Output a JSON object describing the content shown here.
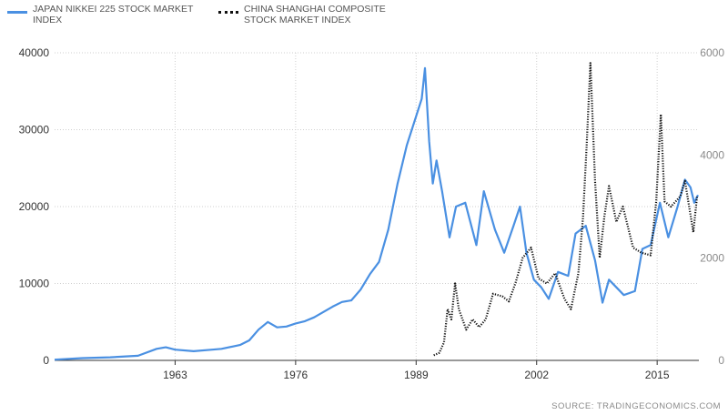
{
  "legend": [
    {
      "label": "JAPAN NIKKEI 225 STOCK MARKET INDEX",
      "color": "#4a90e2",
      "style": "solid"
    },
    {
      "label": "CHINA SHANGHAI COMPOSITE STOCK MARKET INDEX",
      "color": "#111111",
      "style": "dotted"
    }
  ],
  "source": "SOURCE: TRADINGECONOMICS.COM",
  "chart_data": {
    "type": "line",
    "title": "",
    "xlabel": "",
    "ylabel": "",
    "x_ticks": [
      1963,
      1976,
      1989,
      2002,
      2015
    ],
    "xlim": [
      1950,
      2019.5
    ],
    "y_left": {
      "ticks": [
        0,
        10000,
        20000,
        30000,
        40000
      ],
      "lim": [
        0,
        40000
      ]
    },
    "y_right": {
      "ticks": [
        0,
        2000,
        4000,
        6000
      ],
      "lim": [
        0,
        6000
      ]
    },
    "grid": true,
    "legend_position": "top-left",
    "series": [
      {
        "name": "JAPAN NIKKEI 225 STOCK MARKET INDEX",
        "axis": "left",
        "color": "#4a90e2",
        "style": "solid",
        "points": [
          [
            1950,
            100
          ],
          [
            1953,
            300
          ],
          [
            1956,
            400
          ],
          [
            1959,
            600
          ],
          [
            1961,
            1500
          ],
          [
            1962,
            1700
          ],
          [
            1963,
            1400
          ],
          [
            1965,
            1200
          ],
          [
            1967,
            1400
          ],
          [
            1968,
            1500
          ],
          [
            1970,
            2000
          ],
          [
            1971,
            2600
          ],
          [
            1972,
            4000
          ],
          [
            1973,
            5000
          ],
          [
            1974,
            4300
          ],
          [
            1975,
            4400
          ],
          [
            1976,
            4800
          ],
          [
            1977,
            5100
          ],
          [
            1978,
            5600
          ],
          [
            1979,
            6300
          ],
          [
            1980,
            7000
          ],
          [
            1981,
            7600
          ],
          [
            1982,
            7800
          ],
          [
            1983,
            9200
          ],
          [
            1984,
            11200
          ],
          [
            1985,
            12800
          ],
          [
            1986,
            17000
          ],
          [
            1987,
            23000
          ],
          [
            1988,
            28000
          ],
          [
            1989.6,
            34000
          ],
          [
            1989.95,
            38000
          ],
          [
            1990.4,
            28500
          ],
          [
            1990.8,
            23000
          ],
          [
            1991.2,
            26000
          ],
          [
            1991.8,
            22000
          ],
          [
            1992.6,
            16000
          ],
          [
            1993.3,
            20000
          ],
          [
            1994.3,
            20500
          ],
          [
            1995.5,
            15000
          ],
          [
            1996.3,
            22000
          ],
          [
            1997.5,
            17000
          ],
          [
            1998.5,
            14000
          ],
          [
            1999.5,
            17500
          ],
          [
            2000.2,
            20000
          ],
          [
            2000.9,
            14000
          ],
          [
            2001.7,
            10500
          ],
          [
            2002.5,
            9500
          ],
          [
            2003.3,
            8000
          ],
          [
            2004.3,
            11500
          ],
          [
            2005.4,
            11000
          ],
          [
            2006.2,
            16500
          ],
          [
            2007.3,
            17500
          ],
          [
            2008.3,
            13000
          ],
          [
            2009.1,
            7500
          ],
          [
            2009.8,
            10500
          ],
          [
            2010.6,
            9500
          ],
          [
            2011.4,
            8500
          ],
          [
            2012.6,
            9000
          ],
          [
            2013.4,
            14500
          ],
          [
            2014.3,
            15000
          ],
          [
            2015.3,
            20500
          ],
          [
            2016.2,
            16000
          ],
          [
            2017.2,
            20000
          ],
          [
            2018.0,
            23500
          ],
          [
            2018.6,
            22500
          ],
          [
            2019.0,
            20500
          ],
          [
            2019.4,
            21500
          ]
        ]
      },
      {
        "name": "CHINA SHANGHAI COMPOSITE STOCK MARKET INDEX",
        "axis": "right",
        "color": "#111111",
        "style": "dotted",
        "points": [
          [
            1990.9,
            100
          ],
          [
            1991.5,
            150
          ],
          [
            1992.0,
            350
          ],
          [
            1992.4,
            1000
          ],
          [
            1992.8,
            800
          ],
          [
            1993.2,
            1500
          ],
          [
            1993.6,
            1000
          ],
          [
            1994.4,
            600
          ],
          [
            1995.1,
            800
          ],
          [
            1995.8,
            650
          ],
          [
            1996.5,
            800
          ],
          [
            1997.3,
            1300
          ],
          [
            1998.3,
            1250
          ],
          [
            1999.0,
            1150
          ],
          [
            1999.7,
            1500
          ],
          [
            2000.5,
            2000
          ],
          [
            2001.4,
            2200
          ],
          [
            2002.2,
            1600
          ],
          [
            2003.1,
            1500
          ],
          [
            2004.0,
            1700
          ],
          [
            2005.0,
            1200
          ],
          [
            2005.7,
            1000
          ],
          [
            2006.5,
            1700
          ],
          [
            2007.0,
            2800
          ],
          [
            2007.4,
            4200
          ],
          [
            2007.8,
            5800
          ],
          [
            2008.3,
            3500
          ],
          [
            2008.8,
            2000
          ],
          [
            2009.3,
            2800
          ],
          [
            2009.8,
            3400
          ],
          [
            2010.6,
            2700
          ],
          [
            2011.3,
            3000
          ],
          [
            2012.4,
            2200
          ],
          [
            2013.3,
            2100
          ],
          [
            2014.3,
            2050
          ],
          [
            2014.9,
            3100
          ],
          [
            2015.4,
            4800
          ],
          [
            2015.8,
            3100
          ],
          [
            2016.5,
            3000
          ],
          [
            2017.5,
            3200
          ],
          [
            2018.0,
            3500
          ],
          [
            2018.9,
            2500
          ],
          [
            2019.3,
            3200
          ]
        ]
      }
    ]
  }
}
